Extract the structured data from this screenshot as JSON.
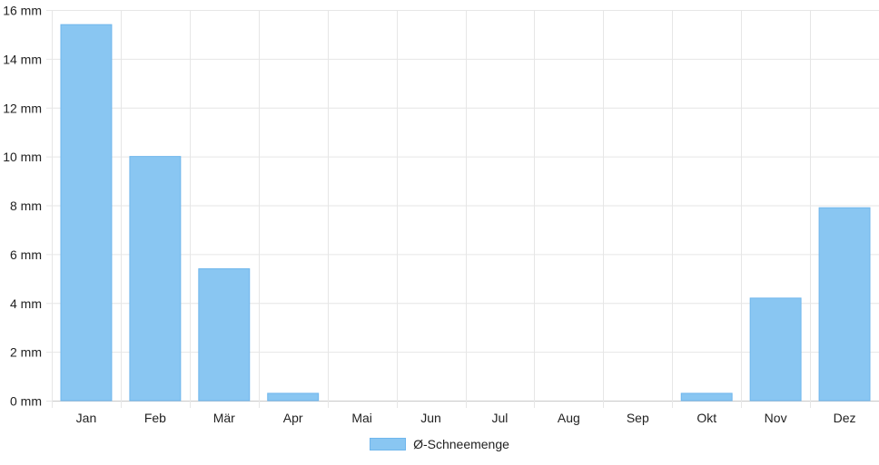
{
  "chart_data": {
    "type": "bar",
    "title": "",
    "xlabel": "",
    "ylabel": "",
    "categories": [
      "Jan",
      "Feb",
      "Mär",
      "Apr",
      "Mai",
      "Jun",
      "Jul",
      "Aug",
      "Sep",
      "Okt",
      "Nov",
      "Dez"
    ],
    "series": [
      {
        "name": "Ø-Schneemenge",
        "values": [
          15.4,
          10.0,
          5.4,
          0.3,
          0.0,
          0.0,
          0.0,
          0.0,
          0.0,
          0.3,
          4.2,
          7.9
        ]
      }
    ],
    "ylim": [
      0,
      16
    ],
    "y_ticks": [
      "0 mm",
      "2 mm",
      "4 mm",
      "6 mm",
      "8 mm",
      "10 mm",
      "12 mm",
      "14 mm",
      "16 mm"
    ],
    "grid": true,
    "legend_position": "bottom-center",
    "colors": {
      "bar": "#89c6f2",
      "bar_stroke": "#6fb6ec",
      "grid": "#e6e6e6",
      "axis": "#c8c8c8"
    }
  }
}
